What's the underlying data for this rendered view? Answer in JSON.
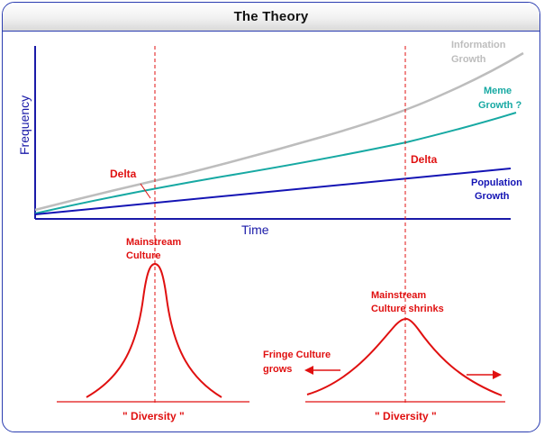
{
  "window": {
    "title": "The Theory"
  },
  "diagram": {
    "ylabel": "Frequency",
    "xlabel": "Time",
    "series_labels": {
      "information": [
        "Information",
        "Growth"
      ],
      "meme": [
        "Meme",
        "Growth ?"
      ],
      "population": [
        "Population",
        "Growth"
      ]
    },
    "delta_labels": [
      "Delta",
      "Delta"
    ],
    "left_curve": {
      "peak_label": [
        "Mainstream",
        "Culture"
      ],
      "axis_label": "\" Diversity \""
    },
    "right_curve": {
      "peak_label": [
        "Mainstream",
        "Culture shrinks"
      ],
      "fringe_label": [
        "Fringe Culture",
        "grows"
      ],
      "axis_label": "\" Diversity \""
    },
    "colors": {
      "information": "#bdbdbd",
      "meme": "#17a9a3",
      "population": "#1414b4",
      "accent": "#e01010",
      "axis": "#1a1aa8"
    }
  }
}
